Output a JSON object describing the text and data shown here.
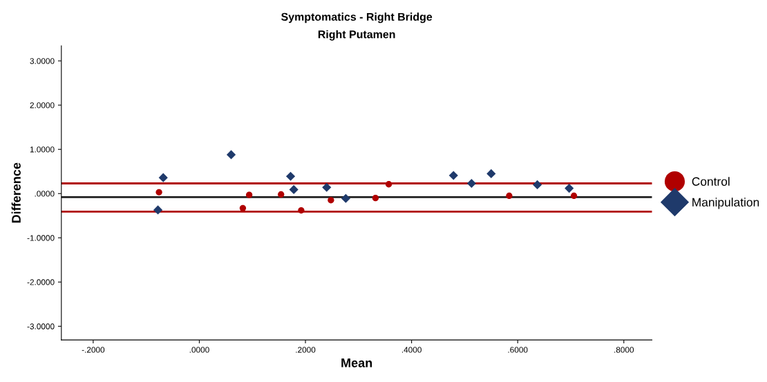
{
  "chart_data": {
    "type": "scatter",
    "title": "Symptomatics - Right Bridge\nRight Putamen",
    "xlabel": "Mean",
    "ylabel": "Difference",
    "xlim": [
      -0.26,
      0.853
    ],
    "ylim": [
      -3.31,
      3.34
    ],
    "xticks": [
      {
        "value": -0.2,
        "label": "-.2000"
      },
      {
        "value": 0,
        "label": ".0000"
      },
      {
        "value": 0.2,
        "label": ".2000"
      },
      {
        "value": 0.4,
        "label": ".4000"
      },
      {
        "value": 0.6,
        "label": ".6000"
      },
      {
        "value": 0.8,
        "label": ".8000"
      }
    ],
    "yticks": [
      {
        "value": -3,
        "label": "-3.0000"
      },
      {
        "value": -2,
        "label": "-2.0000"
      },
      {
        "value": -1,
        "label": "-1.0000"
      },
      {
        "value": 0,
        "label": ".0000"
      },
      {
        "value": 1,
        "label": "1.0000"
      },
      {
        "value": 2,
        "label": "2.0000"
      },
      {
        "value": 3,
        "label": "3.0000"
      }
    ],
    "grid": false,
    "legend": "right",
    "series": [
      {
        "name": "Control",
        "color": "#b00000",
        "marker": "circle",
        "x": [
          -0.076,
          0.082,
          0.094,
          0.154,
          0.192,
          0.248,
          0.332,
          0.357,
          0.584,
          0.706
        ],
        "values": [
          0.03,
          -0.33,
          -0.03,
          -0.02,
          -0.38,
          -0.15,
          -0.1,
          0.21,
          -0.05,
          -0.05
        ]
      },
      {
        "name": "Manipulation",
        "color": "#1f3a6b",
        "marker": "diamond",
        "x": [
          -0.078,
          -0.068,
          0.06,
          0.172,
          0.178,
          0.24,
          0.276,
          0.479,
          0.513,
          0.55,
          0.637,
          0.697
        ],
        "values": [
          -0.37,
          0.36,
          0.88,
          0.39,
          0.09,
          0.14,
          -0.11,
          0.41,
          0.23,
          0.45,
          0.2,
          0.12
        ]
      }
    ],
    "ref_lines": [
      {
        "axis": "y",
        "value": 0.23,
        "label": null,
        "color": "#b00000"
      },
      {
        "axis": "y",
        "value": -0.08,
        "label": null,
        "color": "#202020"
      },
      {
        "axis": "y",
        "value": -0.41,
        "label": null,
        "color": "#b00000"
      }
    ]
  }
}
